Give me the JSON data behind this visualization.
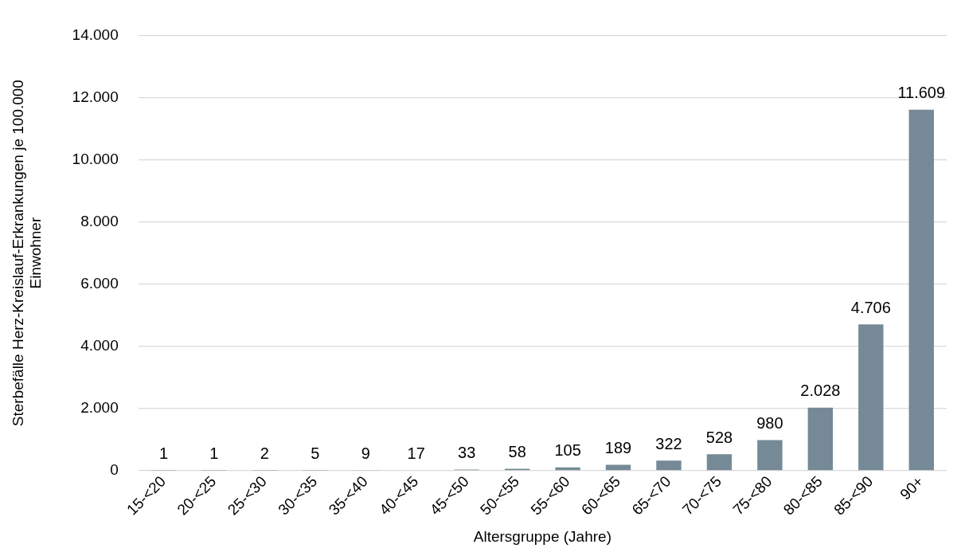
{
  "chart_data": {
    "type": "bar",
    "xlabel": "Altersgruppe (Jahre)",
    "ylabel": "Sterbefälle Herz-Kreislauf-Erkrankungen je 100.000 Einwohner",
    "categories": [
      "15-<20",
      "20-<25",
      "25-<30",
      "30-<35",
      "35-<40",
      "40-<45",
      "45-<50",
      "50-<55",
      "55-<60",
      "60-<65",
      "65-<70",
      "70-<75",
      "75-<80",
      "80-<85",
      "85-<90",
      "90+"
    ],
    "values": [
      1,
      1,
      2,
      5,
      9,
      17,
      33,
      58,
      105,
      189,
      322,
      528,
      980,
      2028,
      4706,
      11609
    ],
    "value_labels": [
      "1",
      "1",
      "2",
      "5",
      "9",
      "17",
      "33",
      "58",
      "105",
      "189",
      "322",
      "528",
      "980",
      "2.028",
      "4.706",
      "11.609"
    ],
    "color": "#758a96",
    "ylim": [
      0,
      14000
    ],
    "yticks": [
      0,
      {
        "value": 2000,
        "label": "2.000"
      },
      {
        "value": 4000,
        "label": "4.000"
      },
      {
        "value": 6000,
        "label": "6.000"
      },
      {
        "value": 8000,
        "label": "8.000"
      },
      {
        "value": 10000,
        "label": "10.000"
      },
      {
        "value": 12000,
        "label": "12.000"
      },
      {
        "value": 14000,
        "label": "14.000"
      }
    ],
    "grid": "y",
    "legend": false
  }
}
